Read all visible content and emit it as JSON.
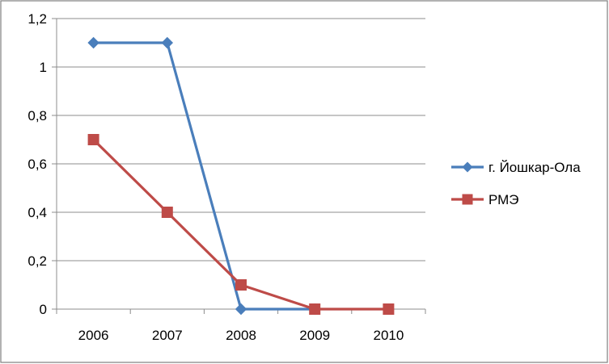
{
  "chart_data": {
    "type": "line",
    "title": "",
    "xlabel": "",
    "ylabel": "",
    "categories": [
      "2006",
      "2007",
      "2008",
      "2009",
      "2010"
    ],
    "ylim": [
      0,
      1.2
    ],
    "yticks": [
      0,
      0.2,
      0.4,
      0.6,
      0.8,
      1,
      1.2
    ],
    "ytick_labels": [
      "0",
      "0,2",
      "0,4",
      "0,6",
      "0,8",
      "1",
      "1,2"
    ],
    "grid": true,
    "legend_position": "right",
    "series": [
      {
        "name": "г. Йошкар-Ола",
        "values": [
          1.1,
          1.1,
          0,
          0,
          null
        ],
        "color": "#4a7ebb",
        "marker": "diamond"
      },
      {
        "name": "РМЭ",
        "values": [
          0.7,
          0.4,
          0.1,
          0,
          0
        ],
        "color": "#be4b48",
        "marker": "square"
      }
    ]
  }
}
